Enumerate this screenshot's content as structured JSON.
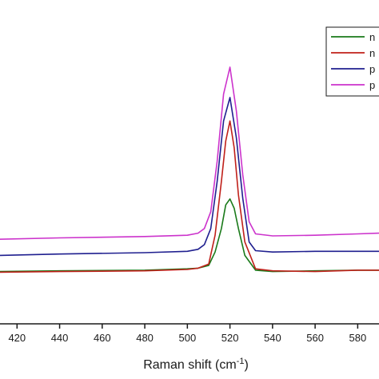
{
  "chart_data": {
    "type": "line",
    "xlabel": "Raman shift (cm",
    "xlabel_superscript": "-1",
    "xlabel_suffix": ")",
    "ylabel": "",
    "xlim": [
      412,
      590
    ],
    "ylim": [
      0,
      420
    ],
    "x_ticks": [
      420,
      440,
      460,
      480,
      500,
      520,
      540,
      560,
      580
    ],
    "grid": false,
    "legend_position": "top-right",
    "series": [
      {
        "name": "n",
        "color": "#1a7a1a",
        "x": [
          412,
          440,
          480,
          500,
          505,
          510,
          513,
          516,
          518,
          520,
          522,
          524,
          527,
          532,
          540,
          560,
          580,
          590
        ],
        "y": [
          16,
          17,
          18,
          20,
          21,
          25,
          45,
          80,
          115,
          124,
          110,
          80,
          40,
          18,
          16,
          17,
          18,
          18
        ]
      },
      {
        "name": "n",
        "color": "#c0201a",
        "x": [
          412,
          440,
          480,
          500,
          505,
          510,
          513,
          516,
          518,
          520,
          522,
          524,
          527,
          532,
          540,
          560,
          580,
          590
        ],
        "y": [
          15,
          16,
          17,
          19,
          21,
          27,
          70,
          150,
          210,
          240,
          200,
          130,
          60,
          20,
          17,
          16,
          18,
          18
        ]
      },
      {
        "name": "p",
        "color": "#1f1f8f",
        "x": [
          412,
          440,
          480,
          500,
          505,
          508,
          511,
          514,
          517,
          520,
          523,
          526,
          529,
          532,
          540,
          560,
          580,
          590
        ],
        "y": [
          40,
          42,
          44,
          46,
          49,
          56,
          80,
          150,
          240,
          275,
          215,
          125,
          60,
          47,
          45,
          46,
          46,
          46
        ]
      },
      {
        "name": "p",
        "color": "#cc33cc",
        "x": [
          412,
          440,
          480,
          500,
          505,
          508,
          511,
          514,
          517,
          520,
          523,
          526,
          529,
          532,
          540,
          560,
          580,
          590
        ],
        "y": [
          64,
          66,
          68,
          70,
          73,
          80,
          105,
          180,
          280,
          320,
          255,
          160,
          90,
          72,
          69,
          70,
          72,
          73
        ]
      }
    ]
  }
}
